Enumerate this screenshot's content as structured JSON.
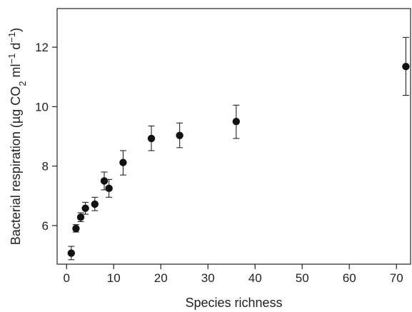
{
  "chart_data": {
    "type": "scatter",
    "title": "",
    "xlabel": "Species richness",
    "ylabel": {
      "prefix": "Bacterial respiration (µg CO",
      "sub": "2",
      "mid": " ml",
      "sup1": "−1",
      "mid2": " d",
      "sup2": "−1",
      "suffix": ")"
    },
    "xlim": [
      -2,
      73
    ],
    "ylim": [
      4.7,
      13.3
    ],
    "xticks": [
      0,
      10,
      20,
      30,
      40,
      50,
      60,
      70
    ],
    "yticks": [
      6,
      8,
      10,
      12
    ],
    "grid": false,
    "points": [
      {
        "x": 1,
        "y": 5.07,
        "err_low": 4.85,
        "err_high": 5.3
      },
      {
        "x": 2,
        "y": 5.9,
        "err_low": 5.78,
        "err_high": 6.03
      },
      {
        "x": 3,
        "y": 6.28,
        "err_low": 6.13,
        "err_high": 6.43
      },
      {
        "x": 4,
        "y": 6.58,
        "err_low": 6.38,
        "err_high": 6.78
      },
      {
        "x": 6,
        "y": 6.72,
        "err_low": 6.5,
        "err_high": 6.95
      },
      {
        "x": 8,
        "y": 7.5,
        "err_low": 7.2,
        "err_high": 7.8
      },
      {
        "x": 9,
        "y": 7.25,
        "err_low": 6.95,
        "err_high": 7.55
      },
      {
        "x": 12,
        "y": 8.12,
        "err_low": 7.7,
        "err_high": 8.52
      },
      {
        "x": 18,
        "y": 8.93,
        "err_low": 8.52,
        "err_high": 9.35
      },
      {
        "x": 24,
        "y": 9.03,
        "err_low": 8.62,
        "err_high": 9.45
      },
      {
        "x": 36,
        "y": 9.5,
        "err_low": 8.93,
        "err_high": 10.05
      },
      {
        "x": 72,
        "y": 11.35,
        "err_low": 10.38,
        "err_high": 12.33
      }
    ]
  }
}
